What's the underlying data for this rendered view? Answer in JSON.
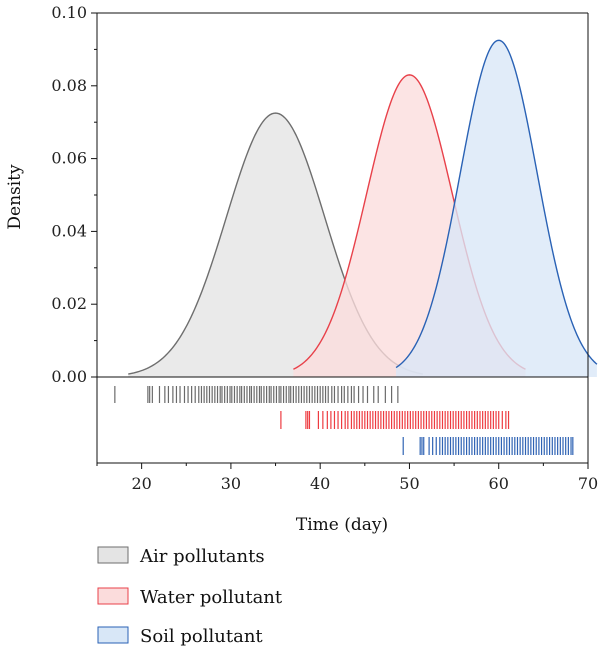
{
  "chart_data": {
    "type": "area",
    "ylabel": "Density",
    "xlabel": "Time (day)",
    "xlim": [
      15,
      70
    ],
    "ylim": [
      0,
      0.1
    ],
    "x_ticks": [
      20,
      30,
      40,
      50,
      60,
      70
    ],
    "y_ticks": [
      0.0,
      0.02,
      0.04,
      0.06,
      0.08,
      0.1
    ],
    "x_tick_labels": [
      "20",
      "30",
      "40",
      "50",
      "60",
      "70"
    ],
    "y_tick_labels": [
      "0.00",
      "0.02",
      "0.04",
      "0.06",
      "0.08",
      "0.10"
    ],
    "legend_position": "bottom",
    "series": [
      {
        "name": "Air pollutants",
        "mean": 35.0,
        "sd": 5.5,
        "peak": 0.0725,
        "range": [
          18.5,
          51.5
        ],
        "fill": "#e4e4e4",
        "stroke": "#6e6e6e",
        "rug_color": "#6a6a6a",
        "rug": [
          17.0,
          20.7,
          20.9,
          21.2,
          22.0,
          22.6,
          23.0,
          23.5,
          23.9,
          24.3,
          24.8,
          25.2,
          25.6,
          26.0,
          26.4,
          26.7,
          27.0,
          27.3,
          27.6,
          27.9,
          28.2,
          28.5,
          28.8,
          29.0,
          29.3,
          29.6,
          29.9,
          30.1,
          30.4,
          30.7,
          31.0,
          31.2,
          31.5,
          31.8,
          32.1,
          32.3,
          32.6,
          32.9,
          33.2,
          33.4,
          33.7,
          34.0,
          34.3,
          34.5,
          34.8,
          35.1,
          35.4,
          35.6,
          35.9,
          36.2,
          36.5,
          36.7,
          37.0,
          37.3,
          37.6,
          37.9,
          38.2,
          38.5,
          38.8,
          39.1,
          39.4,
          39.7,
          40.0,
          40.3,
          40.6,
          40.9,
          41.3,
          41.6,
          42.0,
          42.4,
          42.7,
          43.1,
          43.5,
          43.8,
          44.3,
          44.8,
          45.3,
          46.0,
          46.5,
          47.3,
          48.0,
          48.7
        ]
      },
      {
        "name": "Water pollutant",
        "mean": 50.0,
        "sd": 4.8,
        "peak": 0.083,
        "range": [
          37.0,
          63.0
        ],
        "fill": "#fbdcdc",
        "stroke": "#e8414a",
        "rug_color": "#ee3b40",
        "rug": [
          35.6,
          38.4,
          38.6,
          38.8,
          39.8,
          40.3,
          40.8,
          41.2,
          41.6,
          42.0,
          42.4,
          42.8,
          43.1,
          43.5,
          43.8,
          44.1,
          44.4,
          44.7,
          45.0,
          45.3,
          45.6,
          45.9,
          46.2,
          46.5,
          46.8,
          47.1,
          47.4,
          47.7,
          48.0,
          48.3,
          48.6,
          48.9,
          49.2,
          49.5,
          49.8,
          50.1,
          50.4,
          50.7,
          51.0,
          51.3,
          51.6,
          51.9,
          52.2,
          52.5,
          52.8,
          53.1,
          53.4,
          53.7,
          54.0,
          54.3,
          54.6,
          54.9,
          55.2,
          55.5,
          55.8,
          56.1,
          56.4,
          56.7,
          57.0,
          57.3,
          57.6,
          57.9,
          58.2,
          58.5,
          58.8,
          59.1,
          59.4,
          59.7,
          60.0,
          60.4,
          60.8,
          61.1
        ]
      },
      {
        "name": "Soil pollutant",
        "mean": 60.0,
        "sd": 4.3,
        "peak": 0.0925,
        "range": [
          48.5,
          71.0
        ],
        "fill": "#d8e7f7",
        "stroke": "#2a62b5",
        "rug_color": "#2f63b4",
        "rug": [
          49.3,
          51.2,
          51.4,
          51.6,
          52.2,
          52.6,
          53.0,
          53.4,
          53.7,
          54.0,
          54.3,
          54.6,
          54.9,
          55.2,
          55.5,
          55.8,
          56.1,
          56.4,
          56.7,
          57.0,
          57.3,
          57.6,
          57.9,
          58.2,
          58.5,
          58.8,
          59.1,
          59.4,
          59.7,
          60.0,
          60.3,
          60.6,
          60.9,
          61.2,
          61.5,
          61.8,
          62.1,
          62.4,
          62.7,
          63.0,
          63.3,
          63.6,
          63.9,
          64.2,
          64.5,
          64.8,
          65.1,
          65.4,
          65.7,
          66.0,
          66.3,
          66.6,
          66.9,
          67.2,
          67.5,
          67.8,
          68.1,
          68.3
        ]
      }
    ]
  }
}
